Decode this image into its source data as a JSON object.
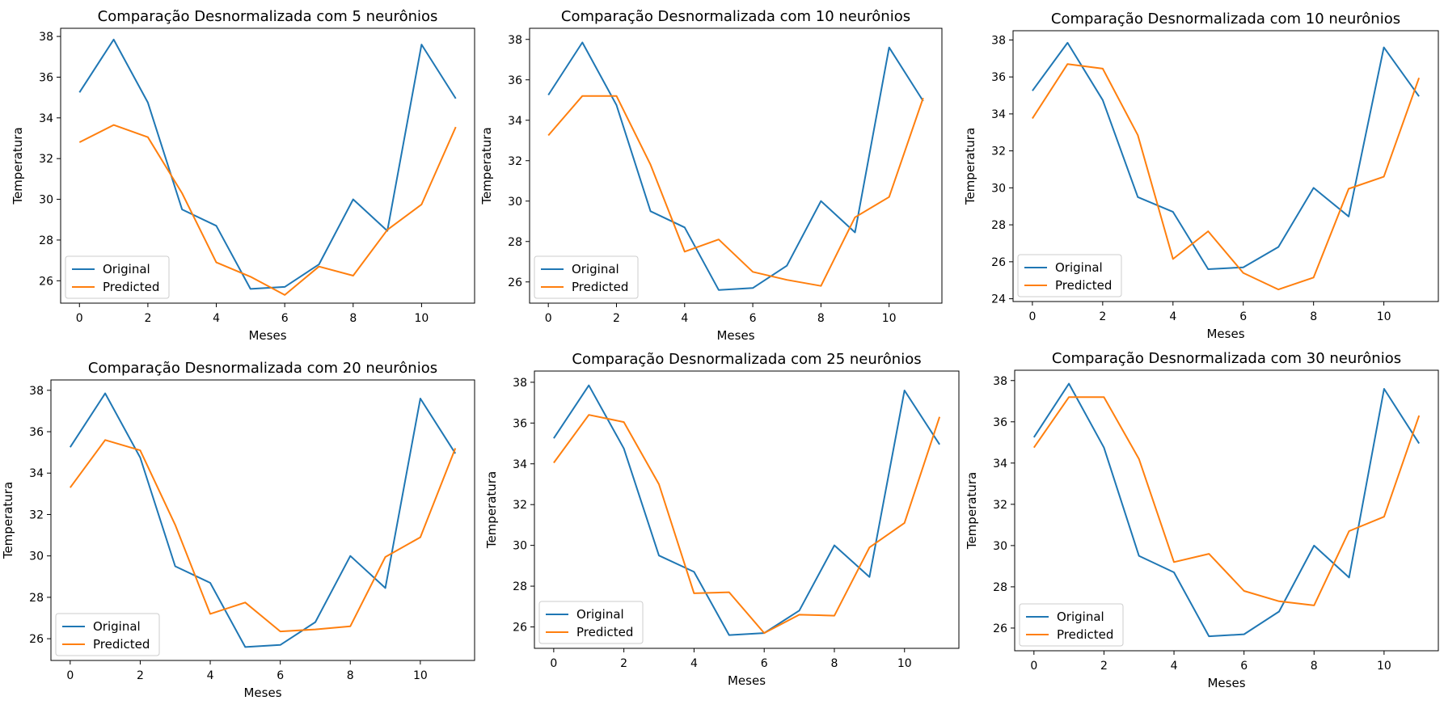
{
  "colors": {
    "original": "#1f77b4",
    "predicted": "#ff7f0e",
    "frame": "#000000",
    "legend_border": "#cccccc"
  },
  "chart_data": [
    {
      "type": "line",
      "title": "Comparação Desnormalizada com 5 neurônios",
      "xlabel": "Meses",
      "ylabel": "Temperatura",
      "xlim": [
        -0.55,
        11.55
      ],
      "ylim": [
        24.9,
        38.4
      ],
      "xticks": [
        0,
        2,
        4,
        6,
        8,
        10
      ],
      "yticks": [
        26,
        28,
        30,
        32,
        34,
        36,
        38
      ],
      "legend": "lower-left",
      "x": [
        0,
        1,
        2,
        3,
        4,
        5,
        6,
        7,
        8,
        9,
        10,
        11
      ],
      "series": [
        {
          "name": "Original",
          "values": [
            35.25,
            37.85,
            34.75,
            29.5,
            28.7,
            25.6,
            25.7,
            26.8,
            30.0,
            28.45,
            37.6,
            34.95
          ]
        },
        {
          "name": "Predicted",
          "values": [
            32.8,
            33.65,
            33.05,
            30.3,
            26.9,
            26.2,
            25.3,
            26.7,
            26.25,
            28.5,
            29.75,
            33.55
          ]
        }
      ]
    },
    {
      "type": "line",
      "title": "Comparação Desnormalizada com 10 neurônios",
      "xlabel": "Meses",
      "ylabel": "Temperatura",
      "xlim": [
        -0.55,
        11.55
      ],
      "ylim": [
        24.95,
        38.55
      ],
      "xticks": [
        0,
        2,
        4,
        6,
        8,
        10
      ],
      "yticks": [
        26,
        28,
        30,
        32,
        34,
        36,
        38
      ],
      "legend": "lower-left",
      "x": [
        0,
        1,
        2,
        3,
        4,
        5,
        6,
        7,
        8,
        9,
        10,
        11
      ],
      "series": [
        {
          "name": "Original",
          "values": [
            35.25,
            37.85,
            34.75,
            29.5,
            28.7,
            25.6,
            25.7,
            26.8,
            30.0,
            28.45,
            37.6,
            34.95
          ]
        },
        {
          "name": "Predicted",
          "values": [
            33.25,
            35.2,
            35.2,
            31.8,
            27.5,
            28.1,
            26.5,
            26.1,
            25.8,
            29.2,
            30.2,
            35.1
          ]
        }
      ]
    },
    {
      "type": "line",
      "title": "Comparação Desnormalizada com 10 neurônios",
      "xlabel": "Meses",
      "ylabel": "Temperatura",
      "xlim": [
        -0.55,
        11.55
      ],
      "ylim": [
        23.85,
        38.5
      ],
      "xticks": [
        0,
        2,
        4,
        6,
        8,
        10
      ],
      "yticks": [
        24,
        26,
        28,
        30,
        32,
        34,
        36,
        38
      ],
      "legend": "lower-left",
      "x": [
        0,
        1,
        2,
        3,
        4,
        5,
        6,
        7,
        8,
        9,
        10,
        11
      ],
      "series": [
        {
          "name": "Original",
          "values": [
            35.25,
            37.85,
            34.75,
            29.5,
            28.7,
            25.6,
            25.7,
            26.8,
            30.0,
            28.45,
            37.6,
            34.95
          ]
        },
        {
          "name": "Predicted",
          "values": [
            33.75,
            36.7,
            36.45,
            32.85,
            26.15,
            27.65,
            25.4,
            24.5,
            25.15,
            29.95,
            30.6,
            35.95
          ]
        }
      ]
    },
    {
      "type": "line",
      "title": "Comparação Desnormalizada com 20 neurônios",
      "xlabel": "Meses",
      "ylabel": "Temperatura",
      "xlim": [
        -0.55,
        11.55
      ],
      "ylim": [
        24.95,
        38.5
      ],
      "xticks": [
        0,
        2,
        4,
        6,
        8,
        10
      ],
      "yticks": [
        26,
        28,
        30,
        32,
        34,
        36,
        38
      ],
      "legend": "lower-left",
      "x": [
        0,
        1,
        2,
        3,
        4,
        5,
        6,
        7,
        8,
        9,
        10,
        11
      ],
      "series": [
        {
          "name": "Original",
          "values": [
            35.25,
            37.85,
            34.75,
            29.5,
            28.7,
            25.6,
            25.7,
            26.8,
            30.0,
            28.45,
            37.6,
            34.95
          ]
        },
        {
          "name": "Predicted",
          "values": [
            33.3,
            35.6,
            35.1,
            31.5,
            27.2,
            27.75,
            26.35,
            26.45,
            26.6,
            29.95,
            30.9,
            35.2
          ]
        }
      ]
    },
    {
      "type": "line",
      "title": "Comparação Desnormalizada com 25 neurônios",
      "xlabel": "Meses",
      "ylabel": "Temperatura",
      "xlim": [
        -0.55,
        11.55
      ],
      "ylim": [
        24.95,
        38.55
      ],
      "xticks": [
        0,
        2,
        4,
        6,
        8,
        10
      ],
      "yticks": [
        26,
        28,
        30,
        32,
        34,
        36,
        38
      ],
      "legend": "lower-left",
      "x": [
        0,
        1,
        2,
        3,
        4,
        5,
        6,
        7,
        8,
        9,
        10,
        11
      ],
      "series": [
        {
          "name": "Original",
          "values": [
            35.25,
            37.85,
            34.75,
            29.5,
            28.7,
            25.6,
            25.7,
            26.8,
            30.0,
            28.45,
            37.6,
            34.95
          ]
        },
        {
          "name": "Predicted",
          "values": [
            34.05,
            36.4,
            36.05,
            33.0,
            27.65,
            27.7,
            25.7,
            26.6,
            26.55,
            29.9,
            31.1,
            36.3
          ]
        }
      ]
    },
    {
      "type": "line",
      "title": "Comparação Desnormalizada com 30 neurônios",
      "xlabel": "Meses",
      "ylabel": "Temperatura",
      "xlim": [
        -0.55,
        11.55
      ],
      "ylim": [
        24.9,
        38.5
      ],
      "xticks": [
        0,
        2,
        4,
        6,
        8,
        10
      ],
      "yticks": [
        26,
        28,
        30,
        32,
        34,
        36,
        38
      ],
      "legend": "lower-left",
      "x": [
        0,
        1,
        2,
        3,
        4,
        5,
        6,
        7,
        8,
        9,
        10,
        11
      ],
      "series": [
        {
          "name": "Original",
          "values": [
            35.25,
            37.85,
            34.75,
            29.5,
            28.7,
            25.6,
            25.7,
            26.8,
            30.0,
            28.45,
            37.6,
            34.95
          ]
        },
        {
          "name": "Predicted",
          "values": [
            34.75,
            37.2,
            37.2,
            34.2,
            29.2,
            29.6,
            27.8,
            27.3,
            27.1,
            30.7,
            31.4,
            36.3
          ]
        }
      ]
    }
  ]
}
